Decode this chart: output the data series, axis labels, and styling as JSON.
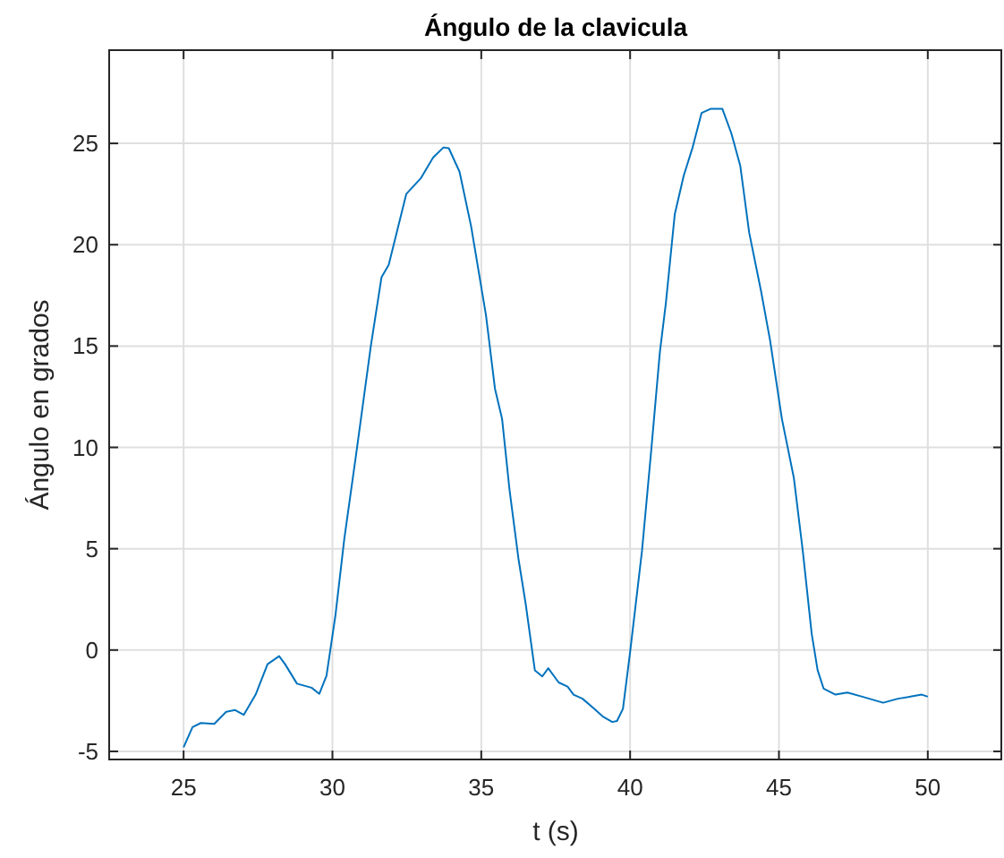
{
  "chart_data": {
    "type": "line",
    "title": "Ángulo de la clavicula",
    "xlabel": "t (s)",
    "ylabel": "Ángulo en grados",
    "xlim": [
      22.5,
      52.5
    ],
    "xticks": [
      25,
      30,
      35,
      40,
      45,
      50
    ],
    "ylim": [
      -5.4,
      29.6
    ],
    "yticks": [
      -5,
      0,
      5,
      10,
      15,
      20,
      25
    ],
    "grid": true,
    "series": [
      {
        "color": "#0072bd",
        "x": [
          25,
          25.3,
          25.58,
          26.03,
          26.43,
          26.73,
          27.02,
          27.42,
          27.82,
          28.21,
          28.41,
          28.81,
          29.3,
          29.56,
          29.8,
          30.1,
          30.4,
          30.8,
          31.29,
          31.65,
          31.89,
          32.48,
          32.98,
          33.38,
          33.73,
          33.91,
          34.27,
          34.66,
          35.16,
          35.46,
          35.7,
          35.95,
          36.25,
          36.49,
          36.8,
          37.05,
          37.25,
          37.6,
          37.9,
          38.1,
          38.4,
          38.8,
          39.1,
          39.4,
          39.56,
          39.76,
          40,
          40.4,
          40.7,
          41,
          41.2,
          41.5,
          41.8,
          42.1,
          42.4,
          42.7,
          43.1,
          43.4,
          43.7,
          44,
          44.4,
          44.7,
          45.1,
          45.5,
          45.8,
          46.1,
          46.3,
          46.5,
          46.9,
          47.3,
          47.8,
          48.5,
          49,
          49.8,
          50
        ],
        "values": [
          -4.8,
          -3.8,
          -3.6,
          -3.64,
          -3.05,
          -2.96,
          -3.2,
          -2.2,
          -0.7,
          -0.3,
          -0.7,
          -1.66,
          -1.86,
          -2.16,
          -1.27,
          1.7,
          5.5,
          9.7,
          15,
          18.4,
          19,
          22.5,
          23.3,
          24.3,
          24.8,
          24.76,
          23.6,
          20.9,
          16.5,
          12.9,
          11.4,
          7.9,
          4.5,
          2.3,
          -1,
          -1.3,
          -0.9,
          -1.6,
          -1.8,
          -2.2,
          -2.4,
          -2.9,
          -3.3,
          -3.55,
          -3.5,
          -2.9,
          -0.1,
          4.9,
          9.7,
          14.7,
          17.1,
          21.5,
          23.4,
          24.8,
          26.5,
          26.7,
          26.7,
          25.5,
          23.9,
          20.6,
          17.7,
          15.3,
          11.4,
          8.5,
          4.9,
          0.8,
          -1,
          -1.9,
          -2.2,
          -2.1,
          -2.3,
          -2.6,
          -2.4,
          -2.2,
          -2.3
        ]
      }
    ]
  }
}
